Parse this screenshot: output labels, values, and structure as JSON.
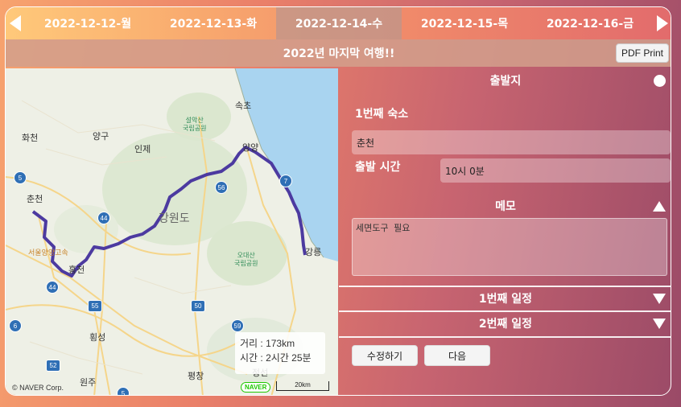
{
  "dates": {
    "tabs": [
      "2022-12-12-월",
      "2022-12-13-화",
      "2022-12-14-수",
      "2022-12-15-목",
      "2022-12-16-금"
    ],
    "active_index": 2
  },
  "trip": {
    "title": "2022년 마지막 여행!!",
    "pdf_label": "PDF Print"
  },
  "map": {
    "places": {
      "sokcho": "속초",
      "hwacheon": "화천",
      "yanggu": "양구",
      "inje": "인제",
      "yangyang": "양양",
      "gangwondo": "강원도",
      "chuncheon": "춘천",
      "gangneung": "강릉",
      "hongcheon": "홍천",
      "hoengseong": "횡성",
      "wonju": "원주",
      "pyeongchang": "평창",
      "jeongseon": "정선",
      "seoul_yangyang": "서울양양고속"
    },
    "parks": {
      "seorak_1": "설악산",
      "seorak_2": "국립공원",
      "odae_1": "오대산",
      "odae_2": "국립공원"
    },
    "shields": {
      "r5a": "5",
      "r44a": "44",
      "r56": "56",
      "r7": "7",
      "r44b": "44",
      "r55": "55",
      "r50": "50",
      "r6": "6",
      "r59": "59",
      "r52": "52",
      "r5b": "5"
    },
    "distance": "거리 : 173km",
    "duration": "시간 : 2시간 25분",
    "logo": "NAVER",
    "scale": "20km",
    "copyright": "© NAVER Corp."
  },
  "departure": {
    "header": "출발지",
    "lodging_label": "1번째 숙소",
    "lodging_value": "춘천",
    "time_label": "출발 시간",
    "time_value": "10시 0분"
  },
  "memo": {
    "header": "메모",
    "value": "세면도구 필요"
  },
  "schedules": [
    "1번째 일정",
    "2번째 일정"
  ],
  "actions": {
    "edit": "수정하기",
    "next": "다음"
  }
}
